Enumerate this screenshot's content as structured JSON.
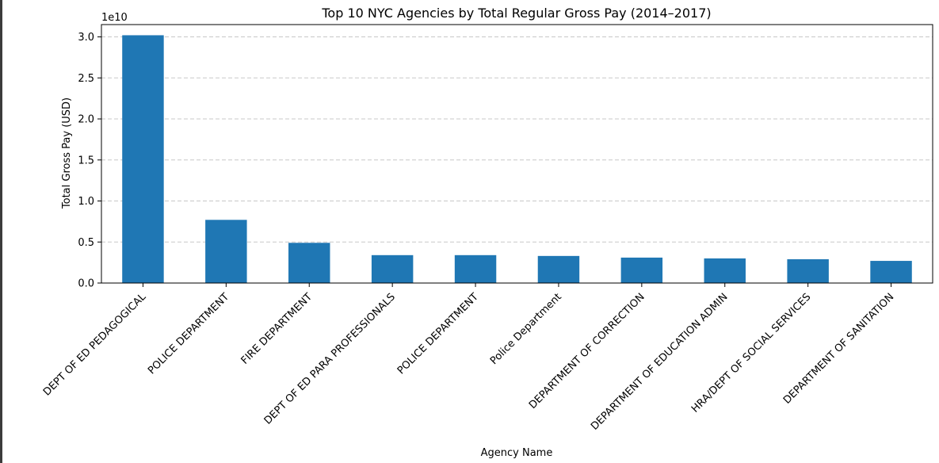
{
  "chart_data": {
    "type": "bar",
    "title": "Top 10 NYC Agencies by Total Regular Gross Pay (2014–2017)",
    "xlabel": "Agency Name",
    "ylabel": "Total Gross Pay (USD)",
    "y_scale_label": "1e10",
    "categories": [
      "DEPT OF ED PEDAGOGICAL",
      "POLICE DEPARTMENT",
      "FIRE DEPARTMENT",
      "DEPT OF ED PARA PROFESSIONALS",
      "POLICE DEPARTMENT",
      "Police Department",
      "DEPARTMENT OF CORRECTION",
      "DEPARTMENT OF EDUCATION ADMIN",
      "HRA/DEPT OF SOCIAL SERVICES",
      "DEPARTMENT OF SANITATION"
    ],
    "values": [
      3.02,
      0.77,
      0.49,
      0.34,
      0.34,
      0.33,
      0.31,
      0.3,
      0.29,
      0.27
    ],
    "ylim": [
      0,
      3.15
    ],
    "yticks": [
      "0.0",
      "0.5",
      "1.0",
      "1.5",
      "2.0",
      "2.5",
      "3.0"
    ],
    "grid": "y-dashed",
    "bar_color": "#1f77b4"
  }
}
